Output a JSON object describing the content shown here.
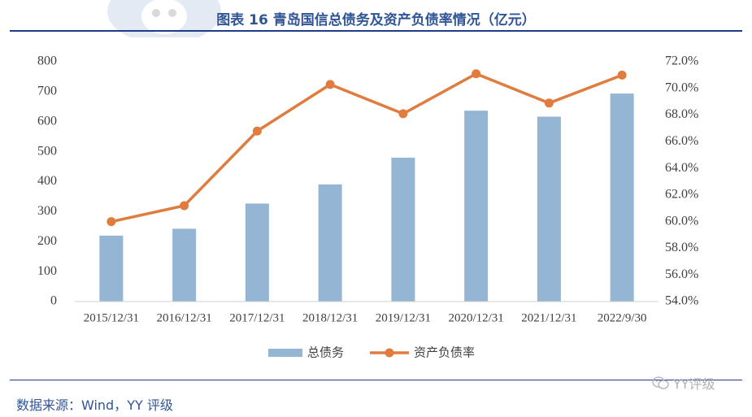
{
  "title": "图表 16 青岛国信总债务及资产负债率情况（亿元）",
  "source": "数据来源：Wind，YY 评级",
  "watermark": "YY评级",
  "icons": {
    "watermark": "wechat-icon",
    "logo": "dog-mascot-logo"
  },
  "colors": {
    "bar": "#94b6d4",
    "line": "#e07c3e",
    "title": "#2f5597",
    "rule": "#1f3c88"
  },
  "chart_data": {
    "type": "bar",
    "categories": [
      "2015/12/31",
      "2016/12/31",
      "2017/12/31",
      "2018/12/31",
      "2019/12/31",
      "2020/12/31",
      "2021/12/31",
      "2022/9/30"
    ],
    "series": [
      {
        "name": "总债务",
        "type": "bar",
        "axis": "left",
        "values": [
          220,
          243,
          327,
          391,
          480,
          637,
          617,
          694
        ]
      },
      {
        "name": "资产负债率",
        "type": "line",
        "axis": "right",
        "values": [
          60.0,
          61.2,
          66.8,
          70.3,
          68.1,
          71.1,
          68.9,
          71.0
        ]
      }
    ],
    "ylim_left": [
      0,
      800
    ],
    "yticks_left": [
      "0",
      "100",
      "200",
      "300",
      "400",
      "500",
      "600",
      "700",
      "800"
    ],
    "ylim_right": [
      54,
      72
    ],
    "yticks_right": [
      "54.0%",
      "56.0%",
      "58.0%",
      "60.0%",
      "62.0%",
      "64.0%",
      "66.0%",
      "68.0%",
      "70.0%",
      "72.0%"
    ],
    "legend_position": "bottom",
    "grid": false
  }
}
